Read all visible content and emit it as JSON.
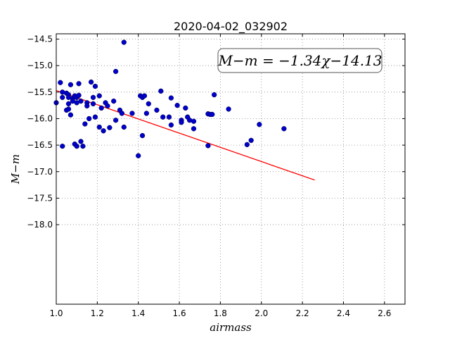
{
  "chart_data": {
    "type": "scatter",
    "title": "2020-04-02_032902",
    "xlabel": "airmass",
    "ylabel": "M−m",
    "xlim": [
      1.0,
      2.7
    ],
    "ylim": [
      -14.4,
      -19.5
    ],
    "y_inverted": true,
    "grid": true,
    "x_ticks": [
      {
        "value": 1.0,
        "label": "1.0"
      },
      {
        "value": 1.2,
        "label": "1.2"
      },
      {
        "value": 1.4,
        "label": "1.4"
      },
      {
        "value": 1.6,
        "label": "1.6"
      },
      {
        "value": 1.8,
        "label": "1.8"
      },
      {
        "value": 2.0,
        "label": "2.0"
      },
      {
        "value": 2.2,
        "label": "2.2"
      },
      {
        "value": 2.4,
        "label": "2.4"
      },
      {
        "value": 2.6,
        "label": "2.6"
      }
    ],
    "y_ticks": [
      {
        "value": -14.5,
        "label": "−14.5"
      },
      {
        "value": -15.0,
        "label": "−15.0"
      },
      {
        "value": -15.5,
        "label": "−15.5"
      },
      {
        "value": -16.0,
        "label": "−16.0"
      },
      {
        "value": -16.5,
        "label": "−16.5"
      },
      {
        "value": -17.0,
        "label": "−17.0"
      },
      {
        "value": -17.5,
        "label": "−17.5"
      },
      {
        "value": -18.0,
        "label": "−18.0"
      }
    ],
    "annotation": "M−m = −1.34χ−14.13",
    "annotation_position": "top-right",
    "fit_line": {
      "slope": -1.34,
      "intercept": -14.13,
      "x_range": [
        1.0,
        2.26
      ],
      "color": "#ff0000"
    },
    "point_color": "#0000cc",
    "series": [
      {
        "points": [
          [
            1.0,
            -15.7
          ],
          [
            1.02,
            -15.32
          ],
          [
            1.03,
            -15.5
          ],
          [
            1.03,
            -15.6
          ],
          [
            1.03,
            -16.52
          ],
          [
            1.05,
            -15.52
          ],
          [
            1.05,
            -15.84
          ],
          [
            1.06,
            -15.55
          ],
          [
            1.06,
            -15.6
          ],
          [
            1.06,
            -15.72
          ],
          [
            1.06,
            -15.82
          ],
          [
            1.07,
            -15.36
          ],
          [
            1.07,
            -15.93
          ],
          [
            1.08,
            -15.62
          ],
          [
            1.08,
            -15.67
          ],
          [
            1.09,
            -15.57
          ],
          [
            1.09,
            -16.48
          ],
          [
            1.1,
            -15.6
          ],
          [
            1.1,
            -15.7
          ],
          [
            1.1,
            -16.52
          ],
          [
            1.11,
            -15.34
          ],
          [
            1.11,
            -15.56
          ],
          [
            1.12,
            -15.67
          ],
          [
            1.12,
            -16.43
          ],
          [
            1.13,
            -16.52
          ],
          [
            1.14,
            -16.1
          ],
          [
            1.15,
            -15.7
          ],
          [
            1.15,
            -15.76
          ],
          [
            1.16,
            -16.0
          ],
          [
            1.17,
            -15.31
          ],
          [
            1.18,
            -15.6
          ],
          [
            1.18,
            -15.72
          ],
          [
            1.19,
            -15.97
          ],
          [
            1.19,
            -15.39
          ],
          [
            1.21,
            -15.57
          ],
          [
            1.21,
            -16.16
          ],
          [
            1.22,
            -15.8
          ],
          [
            1.23,
            -16.23
          ],
          [
            1.24,
            -15.7
          ],
          [
            1.25,
            -15.76
          ],
          [
            1.26,
            -16.17
          ],
          [
            1.28,
            -15.67
          ],
          [
            1.29,
            -15.11
          ],
          [
            1.29,
            -16.03
          ],
          [
            1.31,
            -15.84
          ],
          [
            1.32,
            -15.9
          ],
          [
            1.33,
            -14.56
          ],
          [
            1.33,
            -16.16
          ],
          [
            1.37,
            -15.9
          ],
          [
            1.4,
            -16.7
          ],
          [
            1.41,
            -15.57
          ],
          [
            1.42,
            -15.6
          ],
          [
            1.42,
            -16.32
          ],
          [
            1.43,
            -15.57
          ],
          [
            1.44,
            -15.9
          ],
          [
            1.45,
            -15.72
          ],
          [
            1.49,
            -15.84
          ],
          [
            1.51,
            -15.48
          ],
          [
            1.52,
            -15.97
          ],
          [
            1.55,
            -15.97
          ],
          [
            1.56,
            -15.61
          ],
          [
            1.56,
            -16.12
          ],
          [
            1.59,
            -15.75
          ],
          [
            1.61,
            -16.03
          ],
          [
            1.61,
            -16.07
          ],
          [
            1.63,
            -15.8
          ],
          [
            1.64,
            -15.97
          ],
          [
            1.65,
            -16.03
          ],
          [
            1.67,
            -16.05
          ],
          [
            1.67,
            -16.19
          ],
          [
            1.74,
            -15.91
          ],
          [
            1.74,
            -16.51
          ],
          [
            1.75,
            -15.92
          ],
          [
            1.76,
            -15.92
          ],
          [
            1.77,
            -15.55
          ],
          [
            1.84,
            -15.82
          ],
          [
            1.93,
            -16.49
          ],
          [
            1.95,
            -16.41
          ],
          [
            1.99,
            -16.11
          ],
          [
            2.11,
            -16.19
          ]
        ]
      }
    ]
  }
}
